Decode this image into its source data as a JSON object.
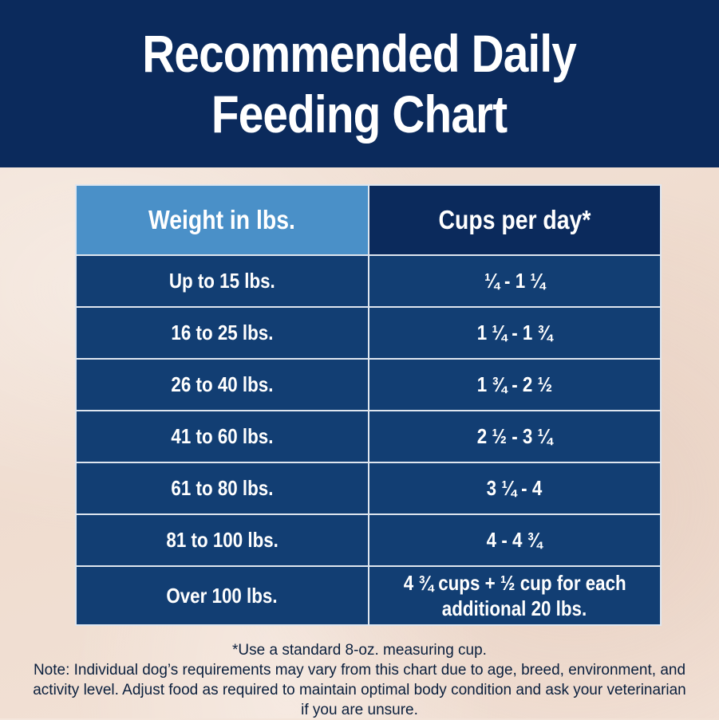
{
  "header": {
    "title": "Recommended Daily\nFeeding Chart"
  },
  "table": {
    "headers": {
      "weight": "Weight in lbs.",
      "cups": "Cups per day*"
    },
    "rows": [
      {
        "weight": "Up to 15 lbs.",
        "cups": "¼ - 1 ¼"
      },
      {
        "weight": "16 to 25 lbs.",
        "cups": "1 ¼ - 1 ¾"
      },
      {
        "weight": "26 to 40 lbs.",
        "cups": "1 ¾ - 2 ½"
      },
      {
        "weight": "41 to 60 lbs.",
        "cups": "2 ½ - 3 ¼"
      },
      {
        "weight": "61 to 80 lbs.",
        "cups": "3 ¼ - 4"
      },
      {
        "weight": "81 to 100 lbs.",
        "cups": "4 - 4 ¾"
      },
      {
        "weight": "Over 100 lbs.",
        "cups_line1": "4 ¾ cups + ½ cup for each",
        "cups_line2": "additional 20 lbs."
      }
    ]
  },
  "footer": {
    "measuring_note": "*Use a standard 8-oz. measuring cup.",
    "note": "Note: Individual dog’s requirements may vary from this chart due to age, breed, environment, and activity level. Adjust food as required to maintain optimal body condition and ask your veterinarian if you are unsure."
  },
  "colors": {
    "navy": "#0b2a5c",
    "row_blue": "#123e73",
    "header_light_blue": "#4a90c8",
    "background_sand": "#f2e2d6"
  }
}
